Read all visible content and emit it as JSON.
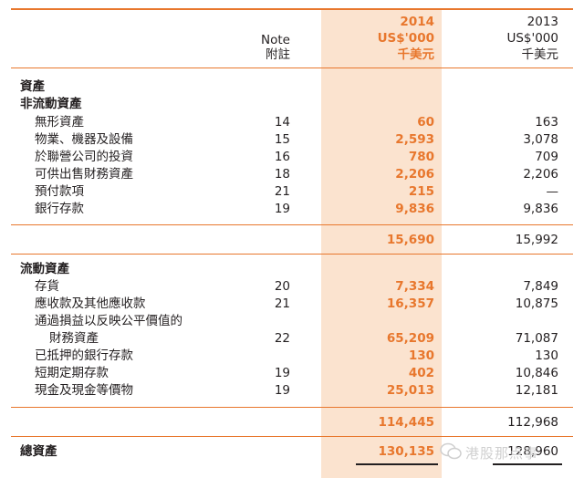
{
  "header": {
    "note_en": "Note",
    "note_zh": "附註",
    "y2014": "2014",
    "unit_2014": "US$'000",
    "unit_zh_2014": "千美元",
    "y2013": "2013",
    "unit_2013": "US$'000",
    "unit_zh_2013": "千美元"
  },
  "assets": {
    "title": "資產",
    "noncurrent_title": "非流動資產",
    "noncurrent_rows": [
      {
        "label": "無形資產",
        "note": "14",
        "v2014": "60",
        "v2013": "163"
      },
      {
        "label": "物業、機器及設備",
        "note": "15",
        "v2014": "2,593",
        "v2013": "3,078"
      },
      {
        "label": "於聯營公司的投資",
        "note": "16",
        "v2014": "780",
        "v2013": "709"
      },
      {
        "label": "可供出售財務資產",
        "note": "18",
        "v2014": "2,206",
        "v2013": "2,206"
      },
      {
        "label": "預付款項",
        "note": "21",
        "v2014": "215",
        "v2013": "—"
      },
      {
        "label": "銀行存款",
        "note": "19",
        "v2014": "9,836",
        "v2013": "9,836"
      }
    ],
    "noncurrent_total": {
      "v2014": "15,690",
      "v2013": "15,992"
    },
    "current_title": "流動資產",
    "current_rows": [
      {
        "label": "存貨",
        "note": "20",
        "v2014": "7,334",
        "v2013": "7,849"
      },
      {
        "label": "應收款及其他應收款",
        "note": "21",
        "v2014": "16,357",
        "v2013": "10,875"
      },
      {
        "label": "通過損益以反映公平價值的",
        "note": "",
        "v2014": "",
        "v2013": ""
      },
      {
        "label": "財務資產",
        "note": "22",
        "v2014": "65,209",
        "v2013": "71,087"
      },
      {
        "label": "已抵押的銀行存款",
        "note": "",
        "v2014": "130",
        "v2013": "130"
      },
      {
        "label": "短期定期存款",
        "note": "19",
        "v2014": "402",
        "v2013": "10,846"
      },
      {
        "label": "現金及現金等價物",
        "note": "19",
        "v2014": "25,013",
        "v2013": "12,181"
      }
    ],
    "current_total": {
      "v2014": "114,445",
      "v2013": "112,968"
    },
    "total_label": "總資產",
    "total": {
      "v2014": "130,135",
      "v2013": "128,960"
    }
  },
  "watermark": "港股那点事"
}
